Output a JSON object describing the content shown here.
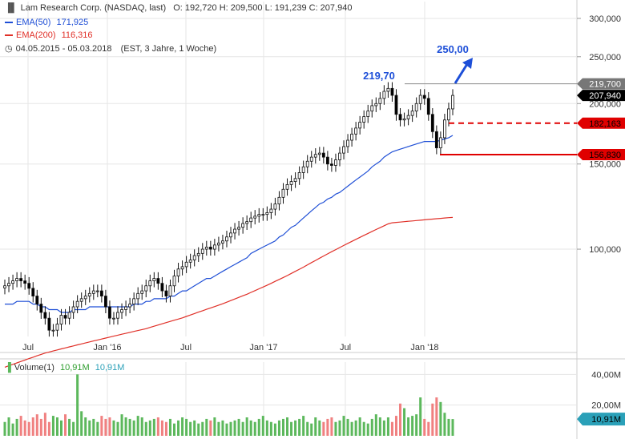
{
  "header": {
    "instrument": "Lam Research Corp. (NASDAQ, last)",
    "ohlc": "O: 192,720  H: 209,500  L: 191,239  C: 207,940",
    "ema50_label": "EMA(50)",
    "ema50_value": "171,925",
    "ema200_label": "EMA(200)",
    "ema200_value": "116,316",
    "range": "04.05.2015 - 05.03.2018",
    "settings": "(EST, 3 Jahre, 1 Woche)"
  },
  "volume_legend": {
    "label": "Volume(1)",
    "value1": "10,91M",
    "value2": "10,91M"
  },
  "colors": {
    "ema50": "#1f4fd6",
    "ema200": "#e03028",
    "up": "#ffffff",
    "down": "#000000",
    "vol_up": "#5cb85c",
    "vol_down": "#f08080",
    "level_red": "#e00000",
    "annotation_blue": "#1d4fd8"
  },
  "annotations": {
    "high_label": "219,70",
    "target_label": "250,00"
  },
  "chart_data": {
    "type": "candlestick",
    "x_ticks": [
      "Jul",
      "Jan '16",
      "Jul",
      "Jan '17",
      "Jul",
      "Jan '18"
    ],
    "y_ticks": [
      "300,000",
      "250,000",
      "200,000",
      "150,000",
      "100,000"
    ],
    "y_tick_values": [
      300,
      250,
      200,
      150,
      100
    ],
    "y_scale": "log",
    "ylim": [
      66,
      325
    ],
    "price_tags": [
      {
        "value": 219.7,
        "label": "219,700",
        "style": "gray"
      },
      {
        "value": 207.94,
        "label": "207,940",
        "style": "black"
      },
      {
        "value": 182.163,
        "label": "182,163",
        "style": "red"
      },
      {
        "value": 156.83,
        "label": "156,830",
        "style": "red"
      }
    ],
    "levels": [
      {
        "value": 219.7,
        "style": "solid-gray"
      },
      {
        "value": 182.163,
        "style": "dashed-red"
      },
      {
        "value": 156.83,
        "style": "solid-red"
      }
    ],
    "closes": [
      84,
      85,
      86,
      87,
      86,
      85,
      83,
      80,
      77,
      74,
      72,
      68,
      68,
      70,
      73,
      72,
      74,
      76,
      78,
      79,
      80,
      81,
      82,
      82,
      80,
      76,
      72,
      72,
      74,
      75,
      76,
      77,
      79,
      81,
      82,
      84,
      86,
      87,
      85,
      82,
      80,
      84,
      88,
      91,
      92,
      94,
      95,
      97,
      98,
      100,
      101,
      100,
      102,
      103,
      104,
      106,
      108,
      110,
      111,
      113,
      114,
      116,
      117,
      118,
      118,
      119,
      121,
      124,
      128,
      133,
      136,
      138,
      140,
      144,
      148,
      152,
      155,
      157,
      158,
      155,
      150,
      149,
      153,
      158,
      163,
      168,
      173,
      178,
      183,
      188,
      193,
      198,
      200,
      205,
      212,
      215,
      208,
      190,
      185,
      186,
      189,
      193,
      200,
      208,
      205,
      190,
      175,
      162,
      170,
      185,
      195,
      207.94
    ],
    "ema50": [
      77,
      77,
      77,
      78,
      78,
      78,
      78,
      77,
      77,
      76,
      76,
      75,
      75,
      75,
      74,
      74,
      74,
      75,
      75,
      75,
      75,
      76,
      76,
      76,
      76,
      76,
      76,
      76,
      76,
      76,
      76,
      76,
      77,
      77,
      77,
      78,
      78,
      79,
      79,
      79,
      79,
      80,
      80,
      81,
      82,
      82,
      83,
      84,
      85,
      86,
      87,
      87,
      88,
      89,
      90,
      91,
      92,
      93,
      94,
      95,
      96,
      98,
      99,
      100,
      101,
      102,
      103,
      104,
      106,
      107,
      109,
      111,
      112,
      114,
      116,
      118,
      120,
      122,
      124,
      125,
      127,
      128,
      130,
      131,
      133,
      135,
      137,
      139,
      141,
      143,
      145,
      148,
      150,
      152,
      155,
      157,
      159,
      160,
      161,
      162,
      163,
      164,
      165,
      166,
      167,
      167,
      167,
      167,
      168,
      169,
      170,
      171.925
    ],
    "ema200": [
      57,
      57.4,
      57.8,
      58.2,
      58.6,
      59,
      59.4,
      59.8,
      60.2,
      60.6,
      61,
      61.3,
      61.6,
      61.9,
      62.2,
      62.5,
      62.8,
      63.1,
      63.4,
      63.7,
      64,
      64.3,
      64.6,
      64.9,
      65.2,
      65.5,
      65.8,
      66.1,
      66.4,
      66.7,
      67,
      67.3,
      67.6,
      67.9,
      68.2,
      68.5,
      68.9,
      69.3,
      69.7,
      70.1,
      70.5,
      70.9,
      71.3,
      71.7,
      72.1,
      72.6,
      73.1,
      73.6,
      74.1,
      74.6,
      75.1,
      75.6,
      76.1,
      76.6,
      77.1,
      77.7,
      78.3,
      78.9,
      79.5,
      80.1,
      80.7,
      81.4,
      82.1,
      82.8,
      83.5,
      84.2,
      85,
      85.8,
      86.6,
      87.4,
      88.2,
      89.1,
      90,
      90.9,
      91.8,
      92.8,
      93.8,
      94.8,
      95.8,
      96.8,
      97.8,
      98.8,
      99.8,
      100.8,
      101.8,
      102.8,
      103.8,
      104.8,
      105.8,
      106.8,
      107.8,
      108.8,
      109.8,
      110.8,
      111.8,
      112.8,
      113.4,
      113.6,
      113.8,
      114,
      114.2,
      114.4,
      114.6,
      114.8,
      115,
      115.2,
      115.4,
      115.6,
      115.8,
      116,
      116.2,
      116.316
    ],
    "volume_y_ticks": [
      "40,00M",
      "20,00M"
    ],
    "volume_y_tick_values": [
      40,
      20
    ],
    "volume_ylim": [
      0,
      48
    ],
    "volume_tag": "10,91M",
    "volumes": [
      9,
      12,
      8,
      11,
      13,
      10,
      9,
      12,
      14,
      11,
      15,
      9,
      13,
      12,
      10,
      14,
      11,
      9,
      40,
      16,
      12,
      10,
      11,
      9,
      13,
      11,
      12,
      10,
      9,
      14,
      12,
      11,
      10,
      13,
      12,
      9,
      10,
      11,
      12,
      10,
      9,
      11,
      8,
      10,
      12,
      11,
      9,
      10,
      8,
      9,
      11,
      10,
      12,
      9,
      10,
      8,
      9,
      10,
      11,
      9,
      12,
      10,
      9,
      11,
      13,
      10,
      9,
      8,
      10,
      11,
      12,
      9,
      10,
      11,
      13,
      9,
      8,
      12,
      10,
      9,
      11,
      12,
      9,
      10,
      13,
      11,
      9,
      10,
      12,
      9,
      8,
      11,
      14,
      12,
      10,
      12,
      9,
      13,
      21,
      18,
      12,
      13,
      14,
      25,
      11,
      9,
      21,
      25,
      22,
      15,
      11,
      10.91
    ]
  }
}
